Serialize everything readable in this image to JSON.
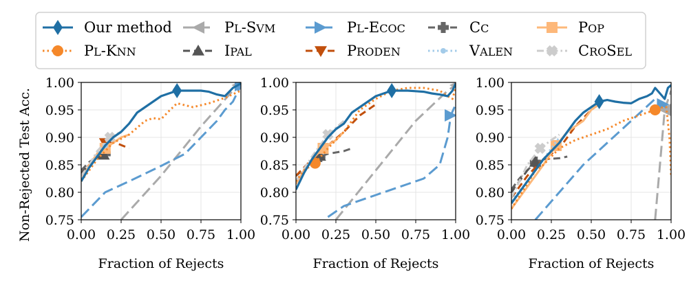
{
  "legend": [
    {
      "name": "Our method",
      "sc": false,
      "color": "#1f6fa4",
      "dash": "solid",
      "marker": "diamond"
    },
    {
      "name": "Pl-Svm",
      "sc": true,
      "color": "#aaaaaa",
      "dash": "longdash",
      "marker": "triangle-left"
    },
    {
      "name": "Pl-Ecoc",
      "sc": true,
      "color": "#5b9bd0",
      "dash": "longdash",
      "marker": "triangle-right"
    },
    {
      "name": "Cc",
      "sc": true,
      "color": "#666666",
      "dash": "dash",
      "marker": "plus"
    },
    {
      "name": "Pop",
      "sc": true,
      "color": "#fdb87a",
      "dash": "solid",
      "marker": "square"
    },
    {
      "name": "Pl-Knn",
      "sc": true,
      "color": "#f5882a",
      "dash": "dotted",
      "marker": "circle"
    },
    {
      "name": "Ipal",
      "sc": true,
      "color": "#555555",
      "dash": "dash",
      "marker": "triangle-up"
    },
    {
      "name": "Proden",
      "sc": true,
      "color": "#c14f0c",
      "dash": "dash",
      "marker": "triangle-down"
    },
    {
      "name": "Valen",
      "sc": true,
      "color": "#a3cbe9",
      "dash": "dotted",
      "marker": "smalldot"
    },
    {
      "name": "CroSel",
      "sc": true,
      "color": "#cccccc",
      "dash": "dashdot",
      "marker": "x"
    }
  ],
  "chart_data": [
    {
      "type": "line",
      "ylabel": "Non-Rejected Test Acc.",
      "xlabel": "Fraction of Rejects",
      "xlim": [
        0,
        1
      ],
      "ylim": [
        0.75,
        1.0
      ],
      "xticks": [
        "0.00",
        "0.25",
        "0.50",
        "0.75",
        "1.00"
      ],
      "yticks": [
        "0.75",
        "0.80",
        "0.85",
        "0.90",
        "0.95",
        "1.00"
      ],
      "grid": true,
      "series": [
        {
          "name": "Pl-Svm",
          "x": [
            0.25,
            0.5,
            0.75,
            0.98
          ],
          "y": [
            0.75,
            0.83,
            0.92,
            0.995
          ],
          "marker_at": 3
        },
        {
          "name": "Pl-Ecoc",
          "x": [
            0,
            0.15,
            0.3,
            0.5,
            0.65,
            0.75,
            0.85,
            0.9,
            0.95,
            1.0
          ],
          "y": [
            0.755,
            0.8,
            0.82,
            0.848,
            0.87,
            0.9,
            0.93,
            0.95,
            0.965,
            0.995
          ],
          "marker_at": 9
        },
        {
          "name": "Cc",
          "x": [
            0,
            0.05,
            0.1,
            0.15
          ],
          "y": [
            0.84,
            0.855,
            0.865,
            0.87
          ],
          "marker_at": 3
        },
        {
          "name": "Ipal",
          "x": [
            0,
            0.05,
            0.1,
            0.14
          ],
          "y": [
            0.835,
            0.85,
            0.862,
            0.868
          ],
          "marker_at": 3
        },
        {
          "name": "Proden",
          "x": [
            0,
            0.05,
            0.1,
            0.15,
            0.2,
            0.3
          ],
          "y": [
            0.83,
            0.85,
            0.87,
            0.89,
            0.892,
            0.88
          ],
          "marker_at": 3
        },
        {
          "name": "Pop",
          "x": [
            0,
            0.05,
            0.1,
            0.15,
            0.2,
            0.25,
            0.3
          ],
          "y": [
            0.82,
            0.85,
            0.87,
            0.88,
            0.89,
            0.9,
            0.905
          ],
          "marker_at": 3
        },
        {
          "name": "Valen",
          "x": [
            0,
            0.05,
            0.1,
            0.15,
            0.2
          ],
          "y": [
            0.825,
            0.845,
            0.87,
            0.885,
            0.9
          ],
          "marker_at": 3
        },
        {
          "name": "CroSel",
          "x": [
            0,
            0.05,
            0.1,
            0.18,
            0.25
          ],
          "y": [
            0.83,
            0.85,
            0.875,
            0.9,
            0.91
          ],
          "marker_at": 3
        },
        {
          "name": "Pl-Knn",
          "x": [
            0,
            0.1,
            0.15,
            0.2,
            0.3,
            0.4,
            0.45,
            0.5,
            0.55,
            0.6,
            0.7,
            0.8,
            0.9,
            1.0
          ],
          "y": [
            0.82,
            0.86,
            0.875,
            0.89,
            0.905,
            0.93,
            0.935,
            0.933,
            0.948,
            0.962,
            0.955,
            0.962,
            0.972,
            0.985
          ],
          "marker_at": -1
        },
        {
          "name": "Our method",
          "x": [
            0,
            0.05,
            0.1,
            0.15,
            0.2,
            0.25,
            0.3,
            0.35,
            0.4,
            0.45,
            0.5,
            0.55,
            0.6,
            0.65,
            0.7,
            0.75,
            0.8,
            0.85,
            0.9,
            0.95,
            1.0
          ],
          "y": [
            0.82,
            0.845,
            0.865,
            0.885,
            0.9,
            0.91,
            0.925,
            0.945,
            0.955,
            0.965,
            0.975,
            0.98,
            0.985,
            0.985,
            0.985,
            0.985,
            0.983,
            0.978,
            0.975,
            0.99,
            0.998
          ],
          "marker_at": 12
        }
      ]
    },
    {
      "type": "line",
      "ylabel": "",
      "xlabel": "Fraction of Rejects",
      "xlim": [
        0,
        1
      ],
      "ylim": [
        0.75,
        1.0
      ],
      "xticks": [
        "0.00",
        "0.25",
        "0.50",
        "0.75",
        "1.00"
      ],
      "yticks": [
        "0.75",
        "0.80",
        "0.85",
        "0.90",
        "0.95",
        "1.00"
      ],
      "grid": true,
      "series": [
        {
          "name": "Pl-Svm",
          "x": [
            0.25,
            0.5,
            0.75,
            0.95,
            1.0
          ],
          "y": [
            0.75,
            0.84,
            0.93,
            0.985,
            0.995
          ],
          "marker_at": 4
        },
        {
          "name": "Pl-Ecoc",
          "x": [
            0.2,
            0.3,
            0.5,
            0.7,
            0.8,
            0.9,
            0.95,
            0.97,
            1.0
          ],
          "y": [
            0.755,
            0.775,
            0.795,
            0.815,
            0.825,
            0.85,
            0.9,
            0.94,
            0.96
          ],
          "marker_at": 7
        },
        {
          "name": "Cc",
          "x": [
            0,
            0.1,
            0.15,
            0.2,
            0.3,
            0.35
          ],
          "y": [
            0.83,
            0.855,
            0.865,
            0.87,
            0.875,
            0.88
          ],
          "marker_at": 2
        },
        {
          "name": "Ipal",
          "x": [
            0,
            0.1,
            0.15
          ],
          "y": [
            0.83,
            0.855,
            0.866
          ],
          "marker_at": 2
        },
        {
          "name": "Proden",
          "x": [
            0,
            0.1,
            0.2,
            0.3,
            0.4,
            0.5
          ],
          "y": [
            0.83,
            0.86,
            0.885,
            0.91,
            0.94,
            0.96
          ],
          "marker_at": -1
        },
        {
          "name": "Pop",
          "x": [
            0,
            0.05,
            0.1,
            0.17,
            0.25,
            0.3
          ],
          "y": [
            0.815,
            0.84,
            0.86,
            0.88,
            0.895,
            0.91
          ],
          "marker_at": 3
        },
        {
          "name": "Valen",
          "x": [
            0,
            0.1,
            0.2,
            0.3
          ],
          "y": [
            0.82,
            0.86,
            0.9,
            0.93
          ],
          "marker_at": -1
        },
        {
          "name": "CroSel",
          "x": [
            0,
            0.1,
            0.2,
            0.3
          ],
          "y": [
            0.82,
            0.865,
            0.905,
            0.93
          ],
          "marker_at": 2
        },
        {
          "name": "Pl-Knn",
          "x": [
            0,
            0.05,
            0.12,
            0.2,
            0.3,
            0.4,
            0.5,
            0.6,
            0.7,
            0.8,
            0.9,
            0.95,
            0.98,
            1.0
          ],
          "y": [
            0.82,
            0.84,
            0.853,
            0.88,
            0.91,
            0.95,
            0.97,
            0.985,
            0.99,
            0.99,
            0.985,
            0.975,
            0.97,
            0.99
          ],
          "marker_at": 2
        },
        {
          "name": "Our method",
          "x": [
            0,
            0.05,
            0.1,
            0.15,
            0.2,
            0.25,
            0.3,
            0.35,
            0.4,
            0.45,
            0.5,
            0.55,
            0.6,
            0.65,
            0.7,
            0.75,
            0.8,
            0.85,
            0.9,
            0.95,
            0.98,
            1.0
          ],
          "y": [
            0.805,
            0.835,
            0.86,
            0.88,
            0.9,
            0.915,
            0.925,
            0.945,
            0.955,
            0.965,
            0.975,
            0.98,
            0.985,
            0.985,
            0.985,
            0.984,
            0.983,
            0.98,
            0.978,
            0.975,
            0.985,
            0.998
          ],
          "marker_at": 12
        }
      ]
    },
    {
      "type": "line",
      "ylabel": "",
      "xlabel": "Fraction of Rejects",
      "xlim": [
        0,
        1
      ],
      "ylim": [
        0.75,
        1.0
      ],
      "xticks": [
        "0.00",
        "0.25",
        "0.50",
        "0.75",
        "1.00"
      ],
      "yticks": [
        "0.75",
        "0.80",
        "0.85",
        "0.90",
        "0.95",
        "1.00"
      ],
      "grid": true,
      "series": [
        {
          "name": "Pl-Svm",
          "x": [
            0.9,
            0.93,
            0.96,
            1.0
          ],
          "y": [
            0.75,
            0.85,
            0.95,
            0.985
          ],
          "marker_at": 2
        },
        {
          "name": "Pl-Ecoc",
          "x": [
            0.15,
            0.3,
            0.45,
            0.6,
            0.75,
            0.9,
            0.95,
            0.98
          ],
          "y": [
            0.75,
            0.8,
            0.85,
            0.89,
            0.93,
            0.97,
            0.96,
            0.95
          ],
          "marker_at": 6
        },
        {
          "name": "Cc",
          "x": [
            0,
            0.05,
            0.1,
            0.15,
            0.2,
            0.3,
            0.35
          ],
          "y": [
            0.805,
            0.825,
            0.84,
            0.855,
            0.86,
            0.862,
            0.865
          ],
          "marker_at": 3
        },
        {
          "name": "Ipal",
          "x": [
            0,
            0.05,
            0.1,
            0.15
          ],
          "y": [
            0.8,
            0.82,
            0.84,
            0.855
          ],
          "marker_at": 3
        },
        {
          "name": "Proden",
          "x": [
            0,
            0.05,
            0.1,
            0.15,
            0.2,
            0.3,
            0.4,
            0.5
          ],
          "y": [
            0.79,
            0.81,
            0.83,
            0.845,
            0.86,
            0.88,
            0.92,
            0.95
          ],
          "marker_at": -1
        },
        {
          "name": "Pop",
          "x": [
            0,
            0.1,
            0.2,
            0.28,
            0.35,
            0.45,
            0.5,
            0.55
          ],
          "y": [
            0.77,
            0.81,
            0.85,
            0.885,
            0.91,
            0.93,
            0.95,
            0.96
          ],
          "marker_at": 3
        },
        {
          "name": "Valen",
          "x": [
            0,
            0.1,
            0.2,
            0.3
          ],
          "y": [
            0.785,
            0.82,
            0.86,
            0.9
          ],
          "marker_at": -1
        },
        {
          "name": "CroSel",
          "x": [
            0,
            0.05,
            0.1,
            0.18,
            0.25,
            0.3
          ],
          "y": [
            0.79,
            0.82,
            0.85,
            0.88,
            0.895,
            0.905
          ],
          "marker_at": 3
        },
        {
          "name": "Pl-Knn",
          "x": [
            0,
            0.1,
            0.15,
            0.2,
            0.3,
            0.4,
            0.5,
            0.6,
            0.7,
            0.8,
            0.9,
            0.95,
            0.97,
            0.99,
            1.0
          ],
          "y": [
            0.77,
            0.815,
            0.84,
            0.85,
            0.88,
            0.895,
            0.905,
            0.915,
            0.93,
            0.94,
            0.95,
            0.955,
            0.955,
            0.9,
            0.83
          ],
          "marker_at": 10
        },
        {
          "name": "Our method",
          "x": [
            0,
            0.05,
            0.1,
            0.15,
            0.2,
            0.25,
            0.3,
            0.35,
            0.4,
            0.45,
            0.5,
            0.55,
            0.6,
            0.65,
            0.7,
            0.75,
            0.8,
            0.85,
            0.88,
            0.9,
            0.93,
            0.96,
            0.98,
            1.0
          ],
          "y": [
            0.78,
            0.8,
            0.82,
            0.84,
            0.86,
            0.875,
            0.89,
            0.91,
            0.93,
            0.945,
            0.955,
            0.965,
            0.968,
            0.965,
            0.963,
            0.962,
            0.97,
            0.975,
            0.98,
            0.99,
            0.98,
            0.97,
            0.99,
            0.995
          ],
          "marker_at": 11
        }
      ]
    }
  ]
}
